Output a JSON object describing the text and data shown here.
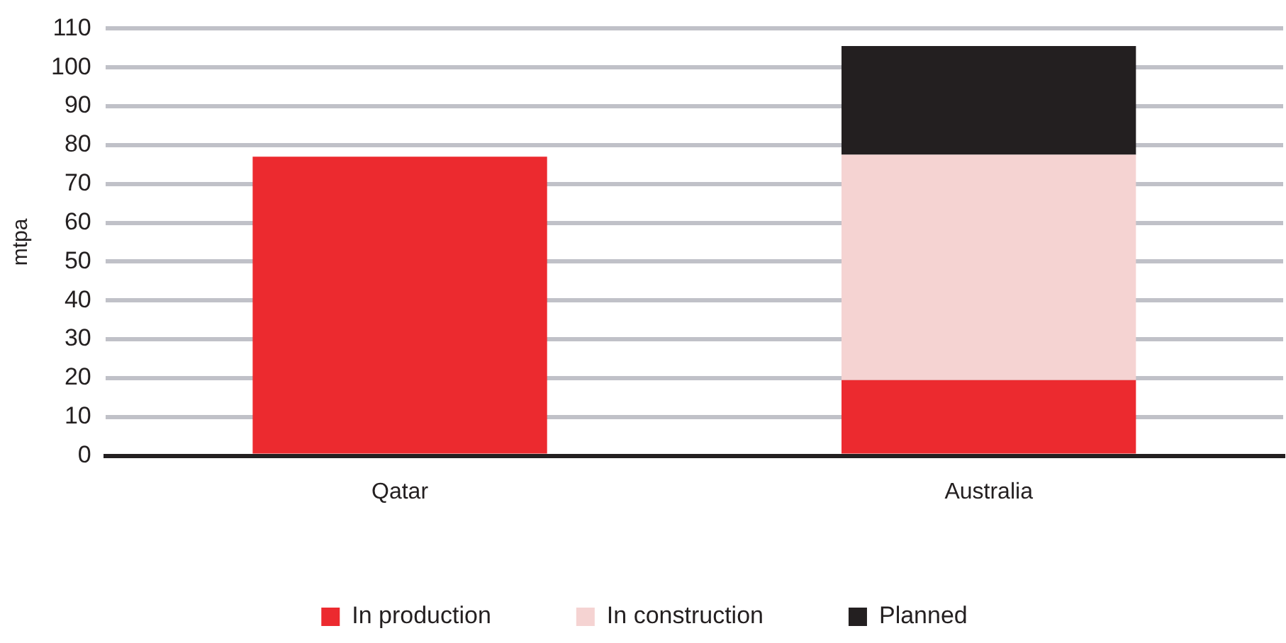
{
  "chart_data": {
    "type": "bar",
    "stacked": true,
    "ylabel": "mtpa",
    "categories": [
      "Qatar",
      "Australia"
    ],
    "series": [
      {
        "name": "In production",
        "color": "#ec2a2f",
        "values": [
          77,
          19.5
        ]
      },
      {
        "name": "In construction",
        "color": "#f5d3d2",
        "values": [
          0,
          58
        ]
      },
      {
        "name": "Planned",
        "color": "#231f20",
        "values": [
          0,
          28
        ]
      }
    ],
    "ylim": [
      0,
      110
    ],
    "yticks": [
      0,
      10,
      20,
      30,
      40,
      50,
      60,
      70,
      80,
      90,
      100,
      110
    ],
    "grid": "y",
    "legend": "bottom"
  }
}
